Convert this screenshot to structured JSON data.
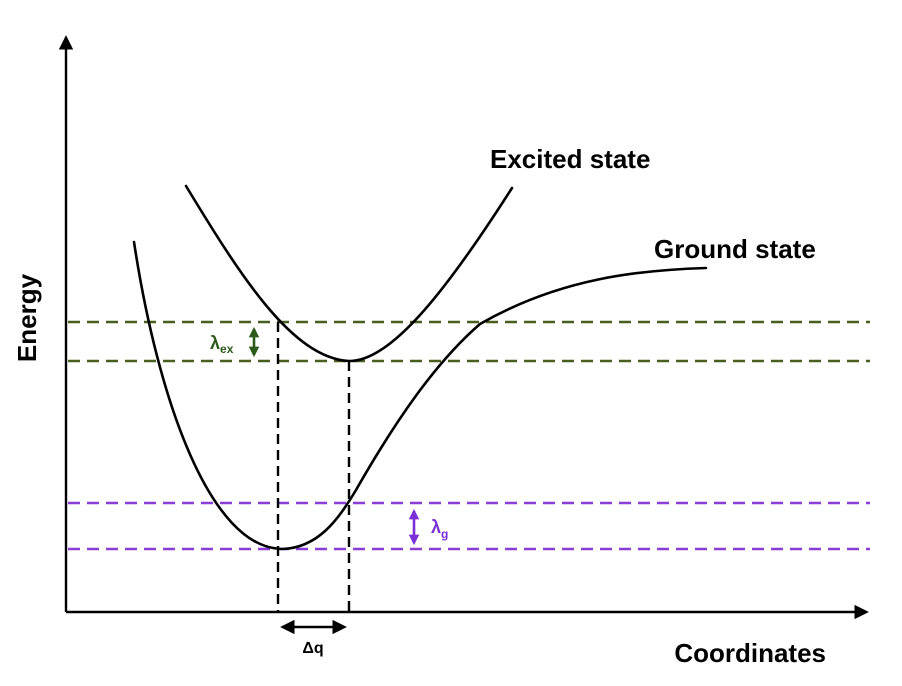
{
  "axes": {
    "y_label": "Energy",
    "x_label": "Coordinates"
  },
  "curves": {
    "excited_label": "Excited state",
    "ground_label": "Ground state"
  },
  "annotations": {
    "lambda_ex_symbol": "λ",
    "lambda_ex_sub": "ex",
    "lambda_g_symbol": "λ",
    "lambda_g_sub": "g",
    "delta_q": "Δq"
  },
  "colors": {
    "excited_levels": "#4a5e1f",
    "lambda_ex": "#2b5a1a",
    "ground_levels": "#8a3ed8",
    "lambda_g": "#7b2fd6",
    "ink": "#000000"
  }
}
